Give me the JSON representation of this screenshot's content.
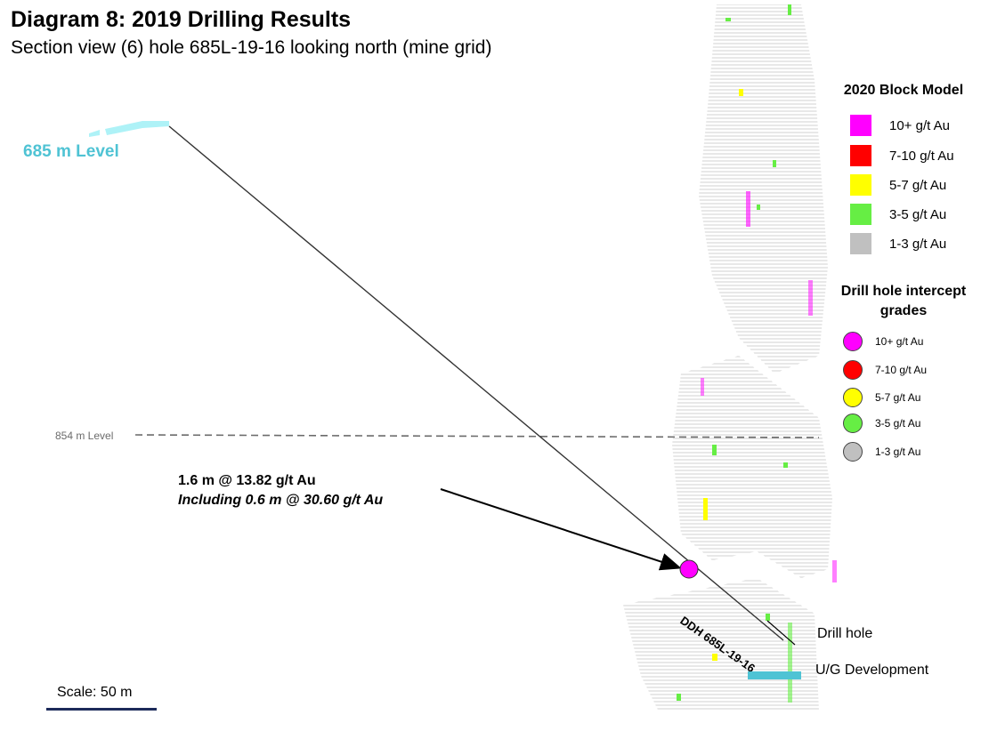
{
  "title": "Diagram 8: 2019 Drilling Results",
  "subtitle": "Section view (6) hole 685L-19-16 looking north (mine grid)",
  "levels": {
    "level_685": "685 m Level",
    "level_854": "854 m Level"
  },
  "intercept": {
    "line1": "1.6 m @ 13.82 g/t Au",
    "line2": "Including 0.6 m @ 30.60 g/t Au"
  },
  "hole_label": "DDH 685L-19-16",
  "block_model": {
    "title": "2020 Block Model",
    "items": [
      {
        "label": "10+ g/t Au",
        "color": "#ff00ff"
      },
      {
        "label": "7-10 g/t Au",
        "color": "#ff0000"
      },
      {
        "label": "5-7 g/t Au",
        "color": "#ffff00"
      },
      {
        "label": "3-5 g/t Au",
        "color": "#66ee44"
      },
      {
        "label": "1-3 g/t Au",
        "color": "#c0c0c0"
      }
    ]
  },
  "drill_hole_grades": {
    "title": "Drill hole intercept grades",
    "items": [
      {
        "label": "10+ g/t Au",
        "color": "#ff00ff"
      },
      {
        "label": "7-10 g/t Au",
        "color": "#ff0000"
      },
      {
        "label": "5-7 g/t Au",
        "color": "#ffff00"
      },
      {
        "label": "3-5 g/t Au",
        "color": "#66ee44"
      },
      {
        "label": "1-3 g/t Au",
        "color": "#c0c0c0"
      }
    ]
  },
  "key": {
    "drill_hole": "Drill hole",
    "ug_development": "U/G Development"
  },
  "scale": "Scale: 50 m",
  "colors": {
    "ug_development": "#4fc3d4",
    "level_line": "#6b6b6b",
    "intercept_marker": "#ff00ff",
    "scale_bar": "#1c2a5a"
  }
}
